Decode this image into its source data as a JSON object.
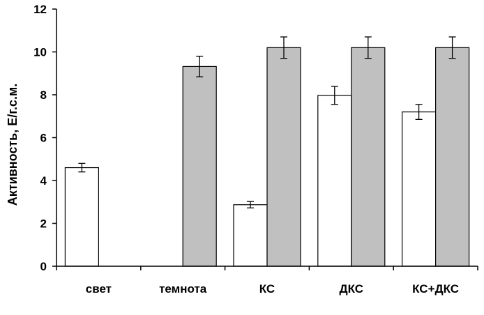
{
  "chart_data": {
    "type": "bar",
    "title": "",
    "xlabel": "",
    "ylabel": "Активность, Е/г.с.м.",
    "ylim": [
      0,
      12
    ],
    "yticks": [
      0,
      2,
      4,
      6,
      8,
      10,
      12
    ],
    "grid": false,
    "legend": "none",
    "categories": [
      "свет",
      "темнота",
      "КС",
      "ДКС",
      "КС+ДКС"
    ],
    "series": [
      {
        "color": "#ffffff",
        "values": [
          4.6,
          null,
          2.87,
          7.97,
          7.2
        ],
        "errors": [
          0.2,
          null,
          0.15,
          0.42,
          0.35
        ]
      },
      {
        "color": "#c0c0c0",
        "values": [
          null,
          9.32,
          10.2,
          10.2,
          10.2
        ],
        "errors": [
          null,
          0.48,
          0.5,
          0.5,
          0.5
        ]
      }
    ]
  }
}
